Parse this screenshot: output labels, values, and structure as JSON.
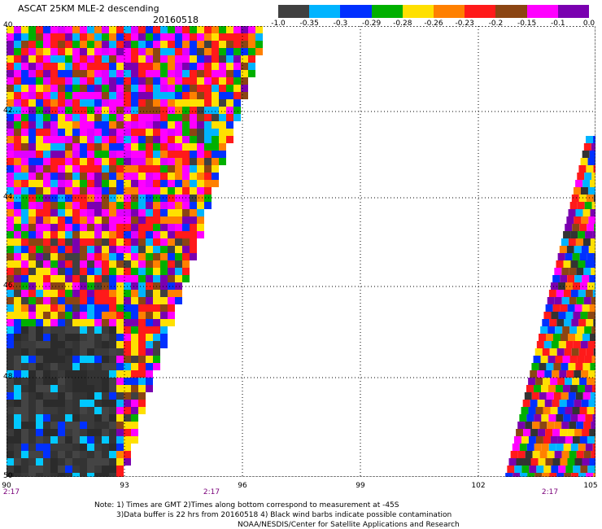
{
  "header": {
    "title": "ASCAT 25KM MLE-2 descending",
    "date": "20160518"
  },
  "colorbar": {
    "colors": [
      "#404040",
      "#00b4ff",
      "#0030ff",
      "#00b000",
      "#ffe000",
      "#ff8000",
      "#ff1a1a",
      "#8b4513",
      "#ff00ff",
      "#7a00b0"
    ],
    "tick_labels": [
      "-1.0",
      "-0.35",
      "-0.3",
      "-0.29",
      "-0.28",
      "-0.26",
      "-0.23",
      "-0.2",
      "-0.15",
      "-0.1",
      "0.0"
    ]
  },
  "axes": {
    "lat_labels": [
      "40",
      "42",
      "44",
      "46",
      "48",
      "50"
    ],
    "lon_labels": [
      "90",
      "93",
      "96",
      "99",
      "102",
      "105"
    ],
    "time_labels": [
      "2:17",
      "2:17",
      "2:17"
    ]
  },
  "notes": {
    "line1": "Note: 1) Times are GMT 2)Times along bottom correspond to measurement at -45S",
    "line2": "3)Data buffer is 22 hrs from 20160518 4) Black wind barbs indicate possible contamination",
    "line3": "NOAA/NESDIS/Center for Satellite Applications and Research"
  }
}
